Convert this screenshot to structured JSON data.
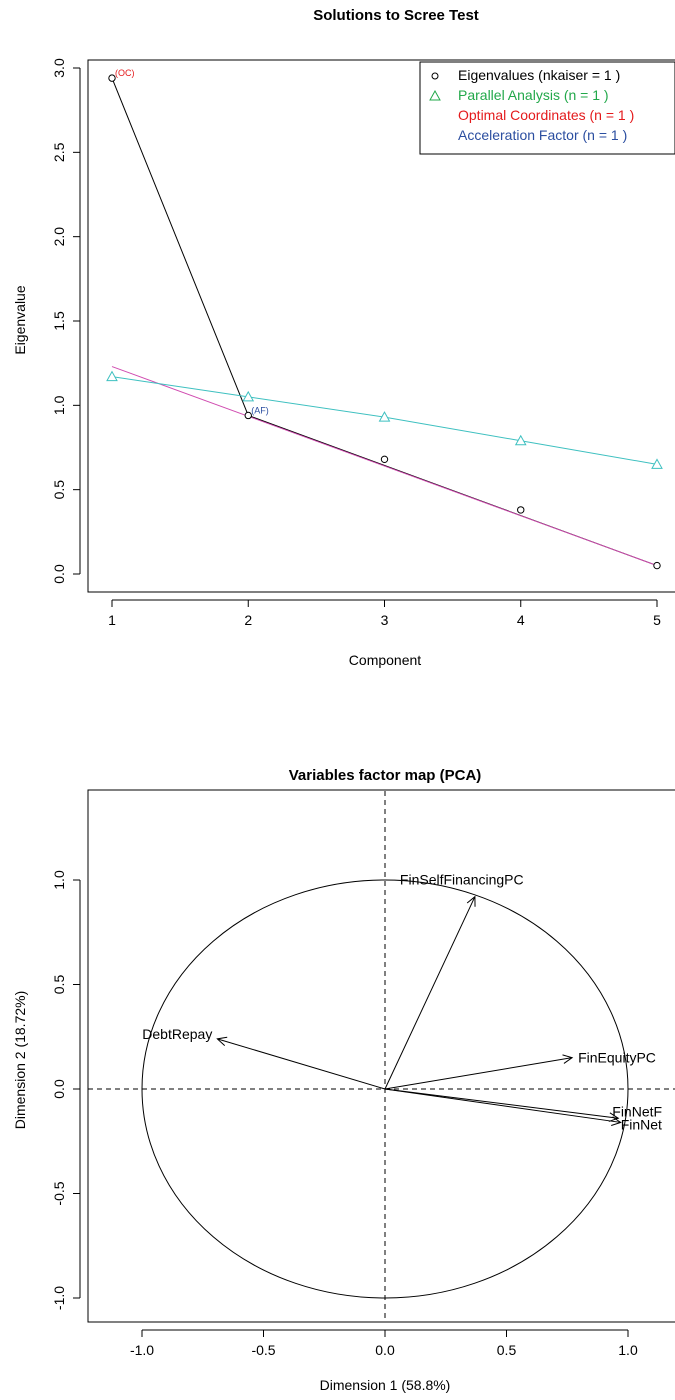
{
  "colors": {
    "eigen": "#000000",
    "parallel": "#3ec0c0",
    "parallel_legend": "#22a84a",
    "oc": "#e41a1c",
    "af": "#2b4ea0",
    "fit": "#d04bb0"
  },
  "chart_data": [
    {
      "type": "line",
      "title": "Solutions to Scree Test",
      "xlabel": "Component",
      "ylabel": "Eigenvalue",
      "xlim": [
        1,
        5
      ],
      "ylim": [
        0,
        3
      ],
      "x_ticks": [
        "1",
        "2",
        "3",
        "4",
        "5"
      ],
      "y_ticks": [
        "0.0",
        "0.5",
        "1.0",
        "1.5",
        "2.0",
        "2.5",
        "3.0"
      ],
      "x": [
        1,
        2,
        3,
        4,
        5
      ],
      "series": [
        {
          "name": "Eigenvalues (nkaiser  = 1 )",
          "values": [
            2.94,
            0.94,
            0.68,
            0.38,
            0.05
          ],
          "color": "#000000",
          "marker": "circle"
        },
        {
          "name": "Parallel Analysis (n  = 1 )",
          "values": [
            1.17,
            1.05,
            0.93,
            0.79,
            0.65
          ],
          "color": "#3ec0c0",
          "marker": "triangle"
        }
      ],
      "optimal_coordinates_lines": [
        {
          "from": [
            1,
            2.94
          ],
          "to": [
            2,
            0.94
          ]
        },
        {
          "from": [
            2,
            0.94
          ],
          "to": [
            5,
            0.05
          ]
        }
      ],
      "fit_line": {
        "from": [
          1,
          1.23
        ],
        "to": [
          5,
          0.05
        ],
        "color": "#d04bb0"
      },
      "annotations": [
        {
          "text": "(OC)",
          "x": 1,
          "y": 2.94,
          "color": "#e41a1c"
        },
        {
          "text": "(AF)",
          "x": 2,
          "y": 0.94,
          "color": "#2b4ea0"
        }
      ],
      "legend": {
        "position": "top-right",
        "entries": [
          {
            "text": "Eigenvalues (nkaiser  = 1 )",
            "color": "#000000",
            "symbol": "circle"
          },
          {
            "text": "Parallel Analysis (n  = 1 )",
            "color": "#22a84a",
            "symbol": "triangle"
          },
          {
            "text": "Optimal Coordinates (n =  1 )",
            "color": "#e41a1c",
            "symbol": ""
          },
          {
            "text": "Acceleration Factor (n =  1 )",
            "color": "#2b4ea0",
            "symbol": ""
          }
        ]
      }
    },
    {
      "type": "scatter",
      "title": "Variables factor map (PCA)",
      "xlabel": "Dimension 1 (58.8%)",
      "ylabel": "Dimension 2 (18.72%)",
      "xlim": [
        -1.1,
        1.1
      ],
      "ylim": [
        -1.1,
        1.1
      ],
      "x_ticks": [
        "-1.0",
        "-0.5",
        "0.0",
        "0.5",
        "1.0"
      ],
      "y_ticks": [
        "-1.0",
        "-0.5",
        "0.0",
        "0.5",
        "1.0"
      ],
      "unit_circle": true,
      "reference_lines": {
        "x0": true,
        "y0": true
      },
      "variables": [
        {
          "name": "FinSelfFinancingPC",
          "x": 0.37,
          "y": 0.92
        },
        {
          "name": "DebtRepay",
          "x": -0.69,
          "y": 0.24
        },
        {
          "name": "FinEquityPC",
          "x": 0.77,
          "y": 0.15
        },
        {
          "name": "FinNetF",
          "x": 0.96,
          "y": -0.14
        },
        {
          "name": "FinNet",
          "x": 0.97,
          "y": -0.16
        }
      ]
    }
  ]
}
